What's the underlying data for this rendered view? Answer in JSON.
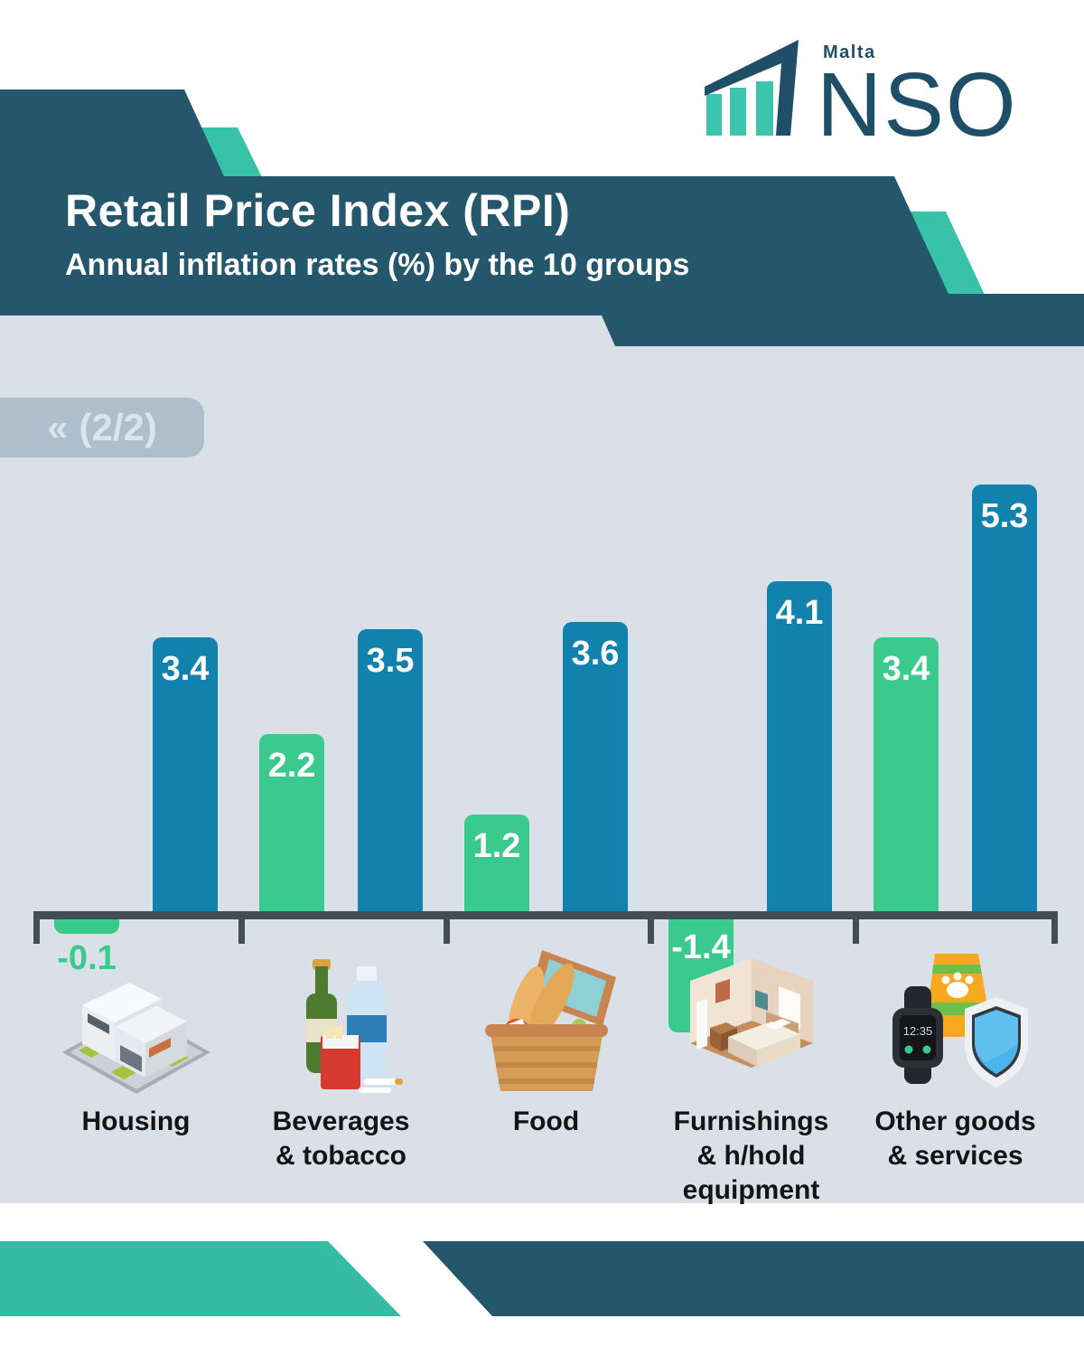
{
  "logo": {
    "country": "Malta",
    "org": "NSO"
  },
  "header": {
    "title": "Retail Price Index (RPI)",
    "subtitle": "Annual inflation rates (%) by the 10 groups"
  },
  "pagination": {
    "icon": "«",
    "label": "(2/2)"
  },
  "chart_data": {
    "type": "bar",
    "title": "Retail Price Index (RPI)",
    "subtitle": "Annual inflation rates (%) by the 10 groups",
    "categories": [
      "Housing",
      "Beverages & tobacco",
      "Food",
      "Furnishings & h/hold equipment",
      "Other goods & services"
    ],
    "category_label_lines": [
      [
        "Housing"
      ],
      [
        "Beverages",
        "& tobacco"
      ],
      [
        "Food"
      ],
      [
        "Furnishings",
        "& h/hold",
        "equipment"
      ],
      [
        "Other goods",
        "& services"
      ]
    ],
    "series": [
      {
        "name": "series-green",
        "color": "#3bca8e",
        "values": [
          -0.1,
          2.2,
          1.2,
          -1.4,
          3.4
        ]
      },
      {
        "name": "series-blue",
        "color": "#1182ae",
        "values": [
          3.4,
          3.5,
          3.6,
          4.1,
          5.3
        ]
      }
    ],
    "value_labels_shown": true,
    "ylim": [
      -1.5,
      5.5
    ],
    "grid": false,
    "legend": null,
    "icon_names": [
      "housing-icon",
      "beverages-tobacco-icon",
      "food-basket-icon",
      "furnishings-icon",
      "other-goods-services-icon"
    ]
  },
  "colors": {
    "banner_navy": "#24566c",
    "accent_teal": "#38c2a8",
    "bar_blue": "#1182ae",
    "bar_green": "#3bca8e",
    "chart_background": "#d9e0e8",
    "axis": "#424d56",
    "badge_background": "#aebfcb",
    "badge_text": "#dbe4ea",
    "footer_teal": "#36bba5",
    "category_label_text": "#141414",
    "value_label_inside": "#ffffff"
  }
}
